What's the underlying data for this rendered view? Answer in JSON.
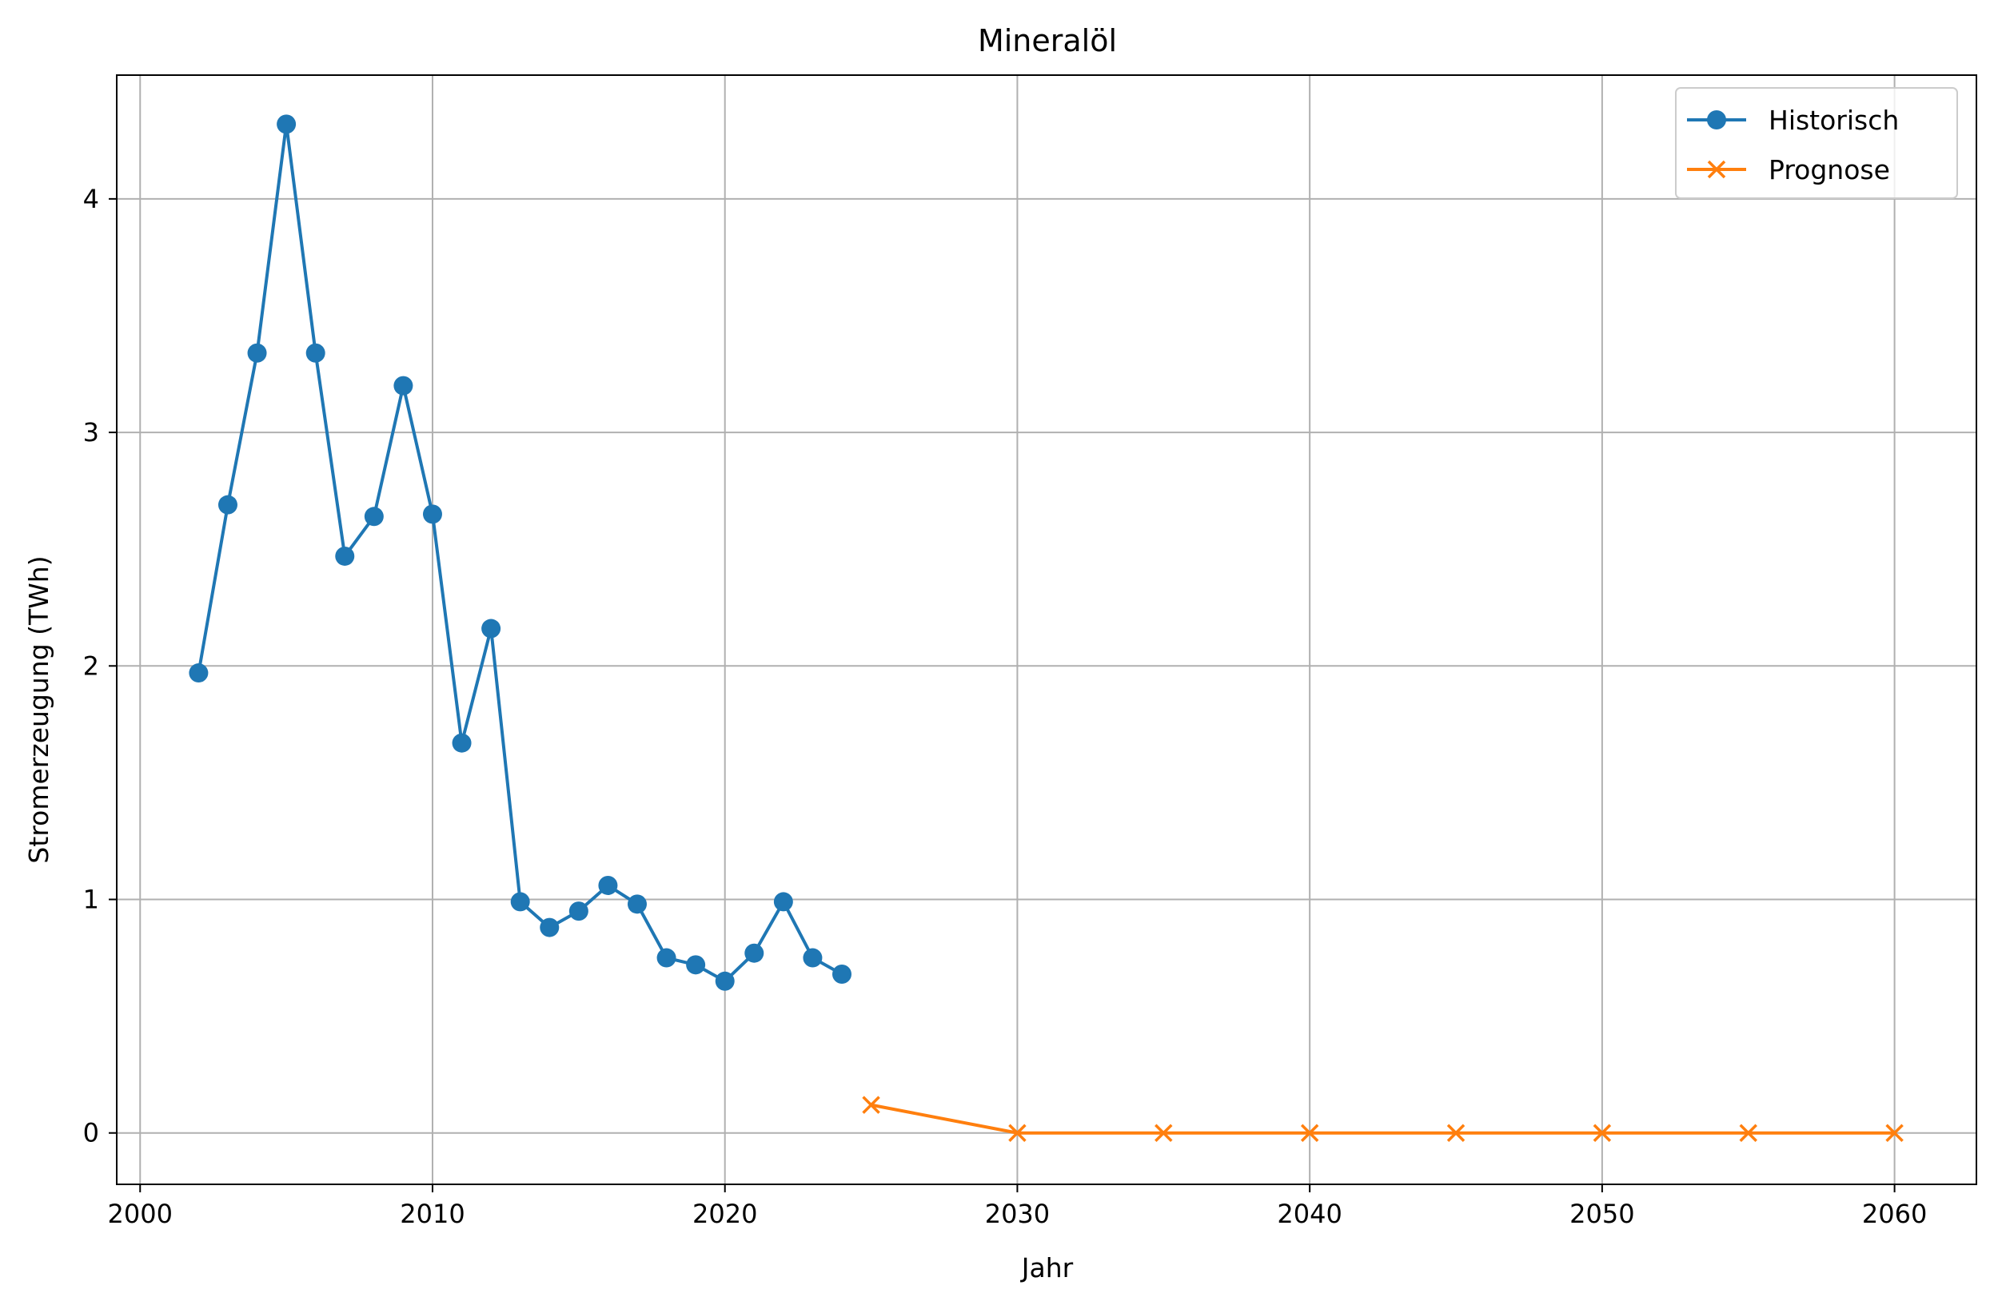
{
  "chart_data": {
    "type": "line",
    "title": "Mineralöl",
    "xlabel": "Jahr",
    "ylabel": "Stromerzeugung (TWh)",
    "xlim": [
      1999.2,
      2062.8
    ],
    "ylim": [
      -0.22,
      4.53
    ],
    "xticks": [
      2000,
      2010,
      2020,
      2030,
      2040,
      2050,
      2060
    ],
    "yticks": [
      0,
      1,
      2,
      3,
      4
    ],
    "grid": true,
    "legend_position": "top-right",
    "series": [
      {
        "name": "Historisch",
        "color": "#1f77b4",
        "marker": "circle",
        "x": [
          2002,
          2003,
          2004,
          2005,
          2006,
          2007,
          2008,
          2009,
          2010,
          2011,
          2012,
          2013,
          2014,
          2015,
          2016,
          2017,
          2018,
          2019,
          2020,
          2021,
          2022,
          2023,
          2024
        ],
        "y": [
          1.97,
          2.69,
          3.34,
          4.32,
          3.34,
          2.47,
          2.64,
          3.2,
          2.65,
          1.67,
          2.16,
          0.99,
          0.88,
          0.95,
          1.06,
          0.98,
          0.75,
          0.72,
          0.65,
          0.77,
          0.99,
          0.75,
          0.68
        ]
      },
      {
        "name": "Prognose",
        "color": "#ff7f0e",
        "marker": "x",
        "x": [
          2025,
          2030,
          2035,
          2040,
          2045,
          2050,
          2055,
          2060
        ],
        "y": [
          0.12,
          0.0,
          0.0,
          0.0,
          0.0,
          0.0,
          0.0,
          0.0
        ]
      }
    ]
  }
}
